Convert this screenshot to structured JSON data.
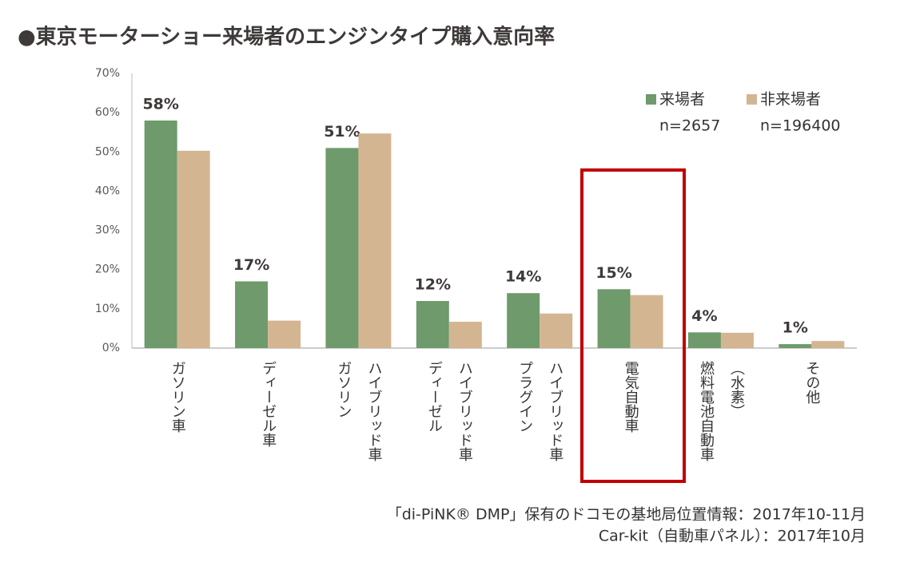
{
  "chart_data": {
    "type": "bar",
    "title": "●東京モーターショー来場者のエンジンタイプ購入意向率",
    "categories": [
      "ガソリン車",
      "ディーゼル車",
      "ガソリン\nハイブリッド車",
      "ディーゼル\nハイブリッド車",
      "プラグイン\nハイブリッド車",
      "電気自動車",
      "燃料電池自動車\n（水素）",
      "その他"
    ],
    "series": [
      {
        "name": "来場者",
        "sample": "n=2657",
        "color": "#6f9a6b",
        "values": [
          58,
          17,
          51,
          12,
          14,
          15,
          4,
          1
        ],
        "value_labels": [
          "58%",
          "17%",
          "51%",
          "12%",
          "14%",
          "15%",
          "4%",
          "1%"
        ]
      },
      {
        "name": "非来場者",
        "sample": "n=196400",
        "color": "#d4b592",
        "values": [
          50.3,
          7,
          54.7,
          6.7,
          8.8,
          13.5,
          3.9,
          1.8
        ]
      }
    ],
    "ylim": [
      0,
      70
    ],
    "yticks": [
      {
        "value": 0,
        "label": "0%"
      },
      {
        "value": 10,
        "label": "10%"
      },
      {
        "value": 20,
        "label": "20%"
      },
      {
        "value": 30,
        "label": "30%"
      },
      {
        "value": 40,
        "label": "40%"
      },
      {
        "value": 50,
        "label": "50%"
      },
      {
        "value": 60,
        "label": "60%"
      },
      {
        "value": 70,
        "label": "70%"
      }
    ],
    "grid": false,
    "notes": [
      "「di-PiNK® DMP」保有のドコモの基地局位置情報：2017年10-11月",
      "Car-kit（自動車パネル）：2017年10月"
    ]
  }
}
